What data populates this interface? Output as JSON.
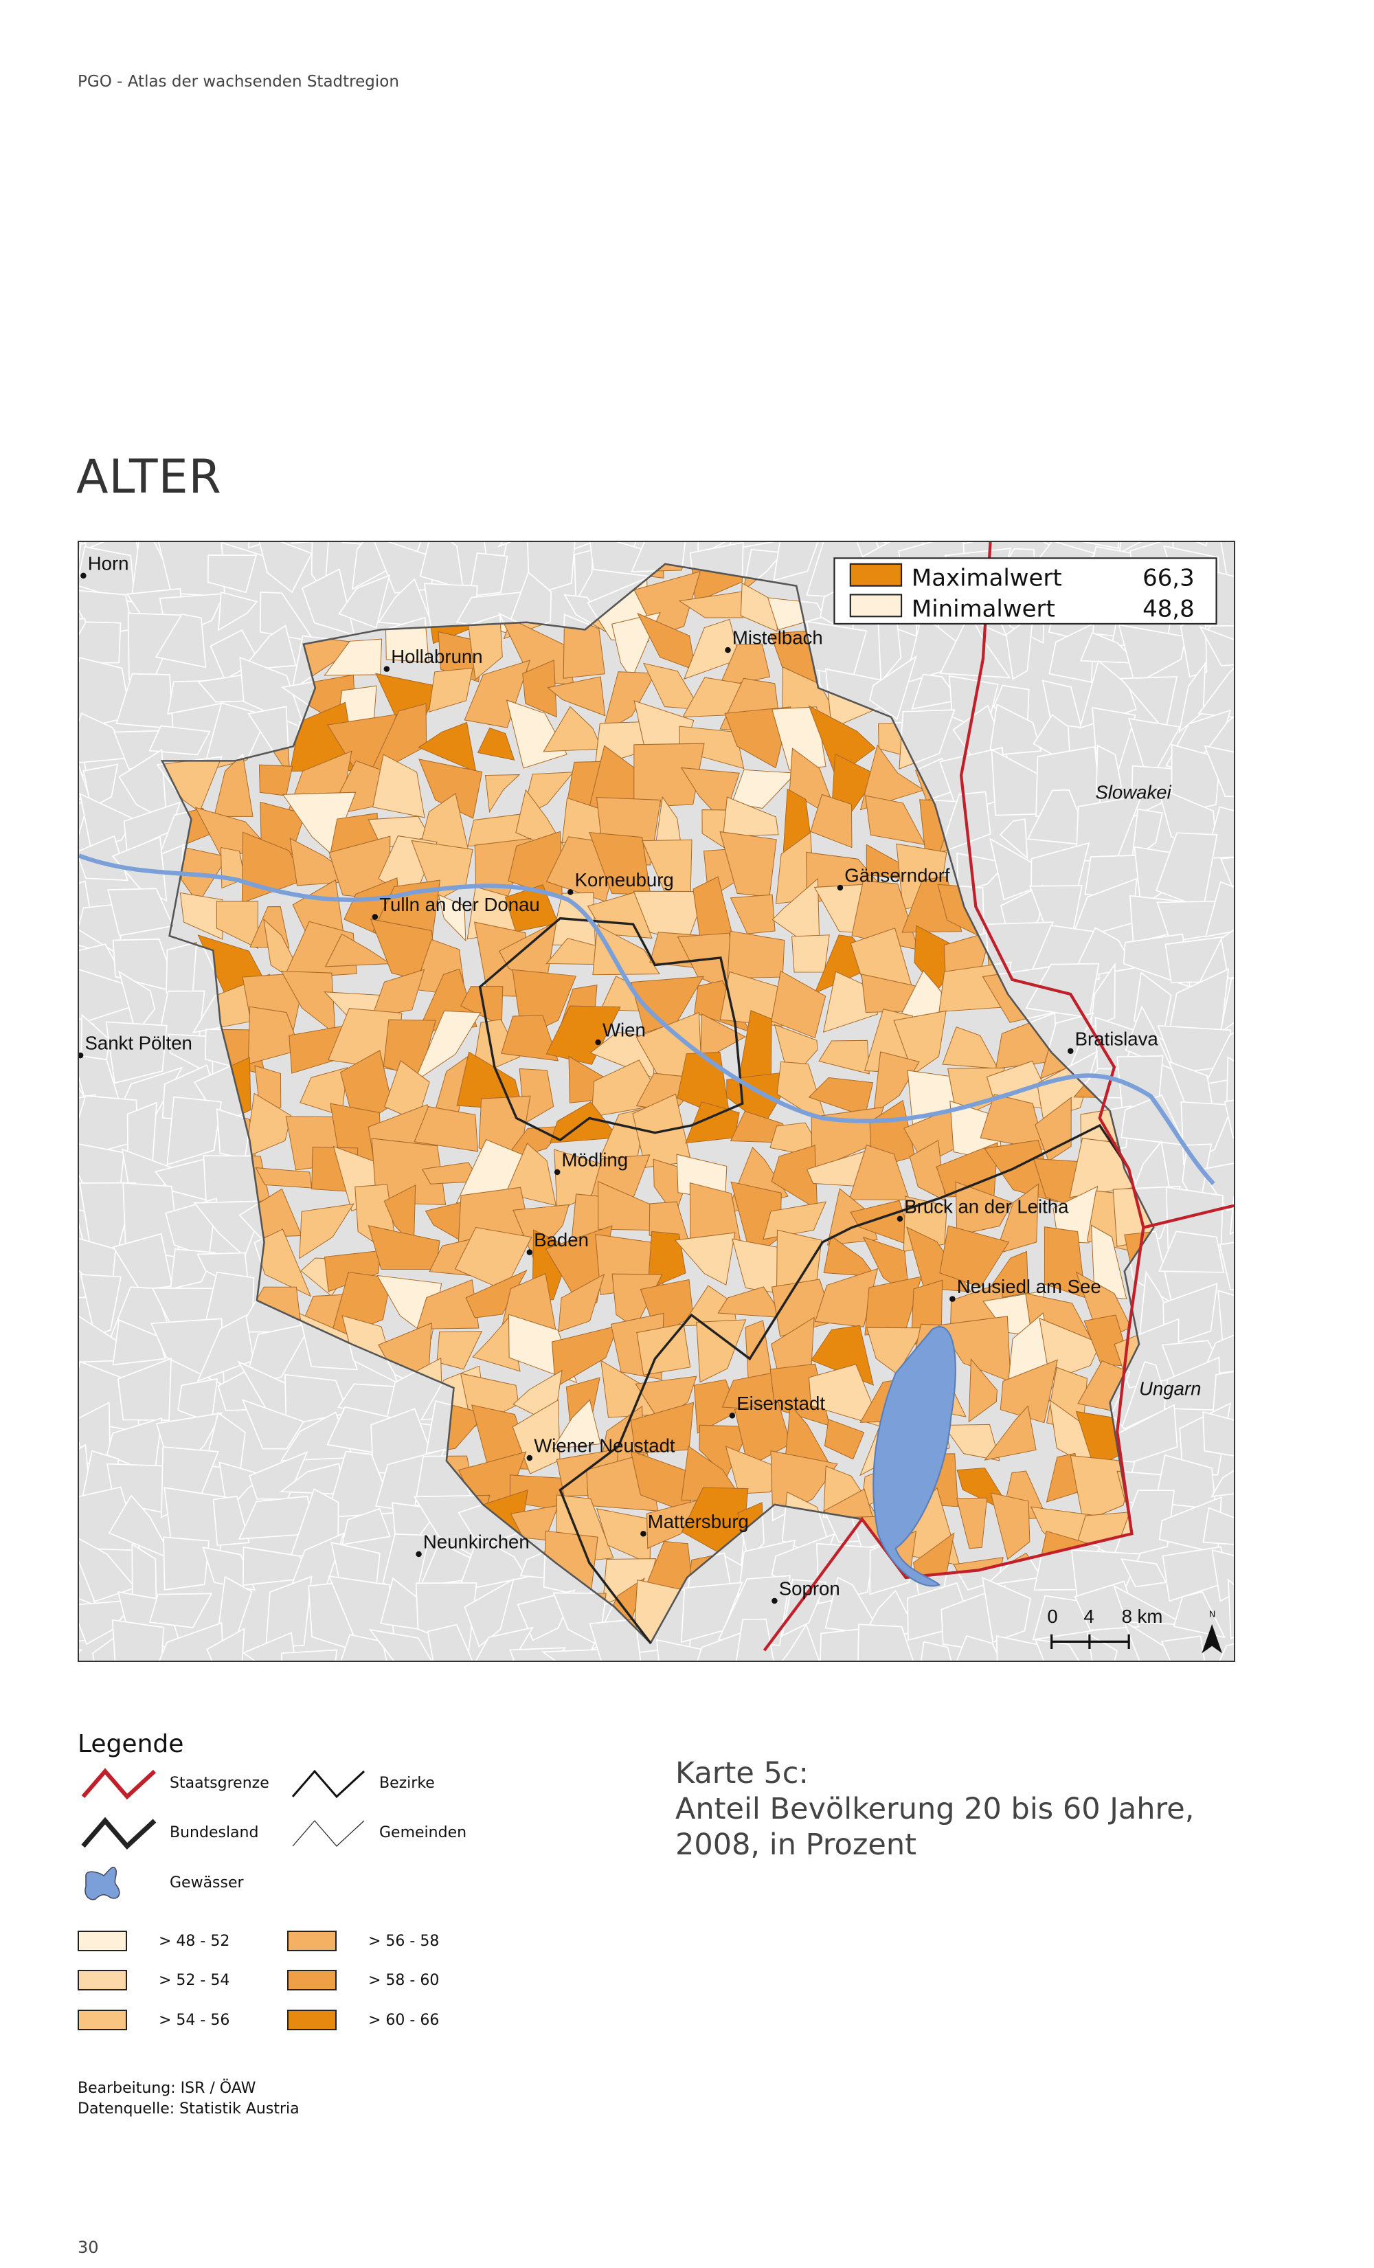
{
  "header": {
    "running_title": "PGO - Atlas der wachsenden Stadtregion",
    "page_title": "ALTER"
  },
  "map": {
    "extremes": {
      "max_label": "Maximalwert",
      "max_value": "66,3",
      "max_color": "#e8890f",
      "min_label": "Minimalwert",
      "min_value": "48,8",
      "min_color": "#fef0d9"
    },
    "places": [
      "Horn",
      "Hollabrunn",
      "Mistelbach",
      "Korneuburg",
      "Gänserndorf",
      "Tulln an der Donau",
      "Sankt Pölten",
      "Bratislava",
      "Wien",
      "Mödling",
      "Bruck an der Leitha",
      "Baden",
      "Neusiedl am See",
      "Eisenstadt",
      "Wiener Neustadt",
      "Mattersburg",
      "Neunkirchen",
      "Sopron"
    ],
    "countries": [
      "Slowakei",
      "Ungarn"
    ],
    "scale": {
      "ticks": [
        "0",
        "4",
        "8 km"
      ]
    },
    "north_label": "N",
    "colors": {
      "background": "#e1e1e1",
      "water": "#7b9fd8",
      "state_border": "#c0202a",
      "bundesland": "#222222"
    }
  },
  "legend": {
    "title": "Legende",
    "lines": [
      {
        "label": "Staatsgrenze",
        "icon": "zigzag-red-icon"
      },
      {
        "label": "Bezirke",
        "icon": "zigzag-black-icon"
      },
      {
        "label": "Bundesland",
        "icon": "zigzag-thick-black-icon"
      },
      {
        "label": "Gemeinden",
        "icon": "zigzag-thin-icon"
      },
      {
        "label": "Gewässer",
        "icon": "water-blob-icon"
      }
    ],
    "classes": [
      {
        "label": "> 48 - 52",
        "color": "#fef0d9"
      },
      {
        "label": "> 52 - 54",
        "color": "#fdd9a8"
      },
      {
        "label": "> 54 - 56",
        "color": "#f9c47f"
      },
      {
        "label": "> 56 - 58",
        "color": "#f4b063"
      },
      {
        "label": "> 58 - 60",
        "color": "#ef9f45"
      },
      {
        "label": "> 60 - 66",
        "color": "#e8890f"
      }
    ]
  },
  "caption": {
    "line1": "Karte 5c:",
    "line2": "Anteil Bevölkerung 20 bis 60 Jahre,",
    "line3": "2008, in Prozent"
  },
  "credits": {
    "line1": "Bearbeitung: ISR / ÖAW",
    "line2": "Datenquelle: Statistik Austria"
  },
  "page_number": "30"
}
